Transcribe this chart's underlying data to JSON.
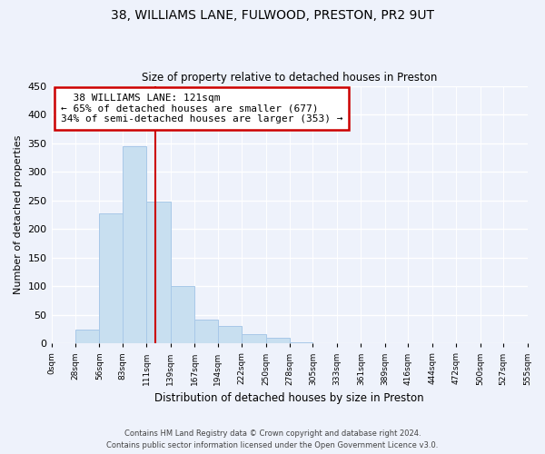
{
  "title_line1": "38, WILLIAMS LANE, FULWOOD, PRESTON, PR2 9UT",
  "title_line2": "Size of property relative to detached houses in Preston",
  "xlabel": "Distribution of detached houses by size in Preston",
  "ylabel": "Number of detached properties",
  "bar_color": "#c8dff0",
  "bar_edge_color": "#a8c8e8",
  "highlight_color": "#cc0000",
  "bin_edges": [
    0,
    28,
    56,
    83,
    111,
    139,
    167,
    194,
    222,
    250,
    278,
    305,
    333,
    361,
    389,
    416,
    444,
    472,
    500,
    527,
    555
  ],
  "bin_labels": [
    "0sqm",
    "28sqm",
    "56sqm",
    "83sqm",
    "111sqm",
    "139sqm",
    "167sqm",
    "194sqm",
    "222sqm",
    "250sqm",
    "278sqm",
    "305sqm",
    "333sqm",
    "361sqm",
    "389sqm",
    "416sqm",
    "444sqm",
    "472sqm",
    "500sqm",
    "527sqm",
    "555sqm"
  ],
  "counts": [
    0,
    25,
    228,
    345,
    248,
    101,
    41,
    30,
    16,
    10,
    2,
    1,
    0,
    0,
    0,
    0,
    0,
    0,
    0,
    1
  ],
  "property_size": 121,
  "property_label": "38 WILLIAMS LANE: 121sqm",
  "pct_smaller": 65,
  "n_smaller": 677,
  "pct_larger": 34,
  "n_larger": 353,
  "ylim": [
    0,
    450
  ],
  "yticks": [
    0,
    50,
    100,
    150,
    200,
    250,
    300,
    350,
    400,
    450
  ],
  "footnote1": "Contains HM Land Registry data © Crown copyright and database right 2024.",
  "footnote2": "Contains public sector information licensed under the Open Government Licence v3.0.",
  "background_color": "#eef2fb"
}
